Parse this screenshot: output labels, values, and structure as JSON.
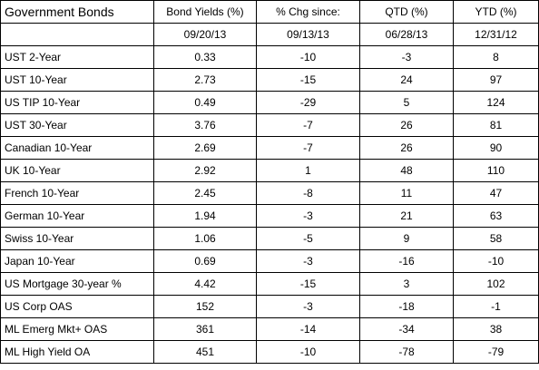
{
  "table": {
    "title": "Government Bonds",
    "headers": [
      "Bond Yields (%)",
      "% Chg since:",
      "QTD (%)",
      "YTD (%)"
    ],
    "subheaders": [
      "09/20/13",
      "09/13/13",
      "06/28/13",
      "12/31/12"
    ],
    "rows": [
      {
        "name": "UST 2-Year",
        "yield": "0.33",
        "chg": "-10",
        "qtd": "-3",
        "ytd": "8"
      },
      {
        "name": "UST 10-Year",
        "yield": "2.73",
        "chg": "-15",
        "qtd": "24",
        "ytd": "97"
      },
      {
        "name": "US TIP 10-Year",
        "yield": "0.49",
        "chg": "-29",
        "qtd": "5",
        "ytd": "124"
      },
      {
        "name": "UST 30-Year",
        "yield": "3.76",
        "chg": "-7",
        "qtd": "26",
        "ytd": "81"
      },
      {
        "name": "Canadian 10-Year",
        "yield": "2.69",
        "chg": "-7",
        "qtd": "26",
        "ytd": "90"
      },
      {
        "name": "UK 10-Year",
        "yield": "2.92",
        "chg": "1",
        "qtd": "48",
        "ytd": "110"
      },
      {
        "name": "French 10-Year",
        "yield": "2.45",
        "chg": "-8",
        "qtd": "11",
        "ytd": "47"
      },
      {
        "name": "German 10-Year",
        "yield": "1.94",
        "chg": "-3",
        "qtd": "21",
        "ytd": "63"
      },
      {
        "name": "Swiss 10-Year",
        "yield": "1.06",
        "chg": "-5",
        "qtd": "9",
        "ytd": "58"
      },
      {
        "name": "Japan 10-Year",
        "yield": "0.69",
        "chg": "-3",
        "qtd": "-16",
        "ytd": "-10"
      },
      {
        "name": "US Mortgage 30-year %",
        "yield": "4.42",
        "chg": "-15",
        "qtd": "3",
        "ytd": "102"
      },
      {
        "name": "US Corp OAS",
        "yield": "152",
        "chg": "-3",
        "qtd": "-18",
        "ytd": "-1"
      },
      {
        "name": "ML Emerg Mkt+ OAS",
        "yield": "361",
        "chg": "-14",
        "qtd": "-34",
        "ytd": "38"
      },
      {
        "name": "ML High Yield OA",
        "yield": "451",
        "chg": "-10",
        "qtd": "-78",
        "ytd": "-79"
      }
    ]
  }
}
